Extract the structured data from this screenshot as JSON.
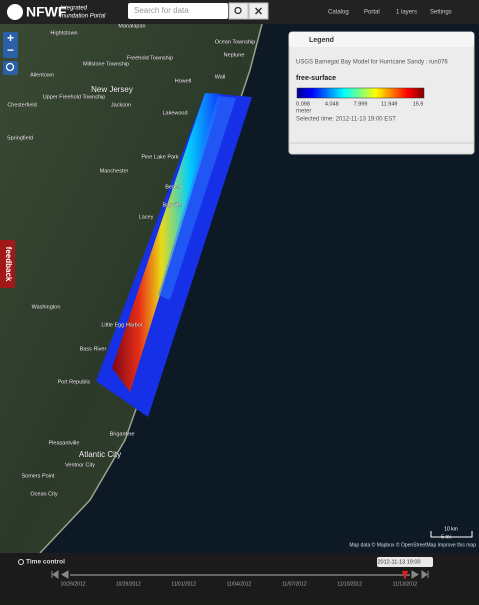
{
  "header": {
    "brand": "NFWF",
    "brand_sub_1": "Integrated",
    "brand_sub_2": "Inundation Portal",
    "search_placeholder": "Search for data",
    "nav": [
      "Catalog",
      "Portal",
      "1 layers",
      "Settings"
    ]
  },
  "zoom": {
    "zoom_in": "+",
    "zoom_out": "−"
  },
  "legend": {
    "title": "Legend",
    "layer": "USGS Barnegat Bay Model for Hurricane Sandy : run076",
    "variable": "free-surface",
    "colorbar_labels": [
      "0.098",
      "4.048",
      "7.999",
      "11.949",
      "15.9"
    ],
    "unit": "meter",
    "selected_time": "Selected time: 2012-11-13 19:00 EST"
  },
  "feedback": "feedback",
  "map_labels": [
    "Manalapan",
    "Hightstown",
    "Ocean Township",
    "Freehold Township",
    "Millstone Township",
    "Neptune",
    "Allentown",
    "Howell",
    "Wall",
    "New Jersey",
    "Upper Freehold Township",
    "Jackson",
    "Chesterfield",
    "Lakewood",
    "Springfield",
    "Pine Lake Park",
    "Manchester",
    "Beach",
    "Bayville",
    "Lacey",
    "Washington",
    "Little Egg Harbor",
    "Bass River",
    "Port Republic",
    "Brigantine",
    "Pleasantville",
    "Atlantic City",
    "Ventnor City",
    "Somers Point",
    "Ocean City"
  ],
  "scale": {
    "km": "10 km",
    "mi": "5 mi"
  },
  "attribution": "Map data © Mapbox © OpenStreetMap Improve this map",
  "time_control": {
    "title": "Time control",
    "current": "2012-11-13 19:00",
    "dates": [
      "10/26/2012",
      "10/29/2012",
      "11/01/2012",
      "11/04/2012",
      "11/07/2012",
      "11/10/2012",
      "11/13/2012"
    ]
  }
}
